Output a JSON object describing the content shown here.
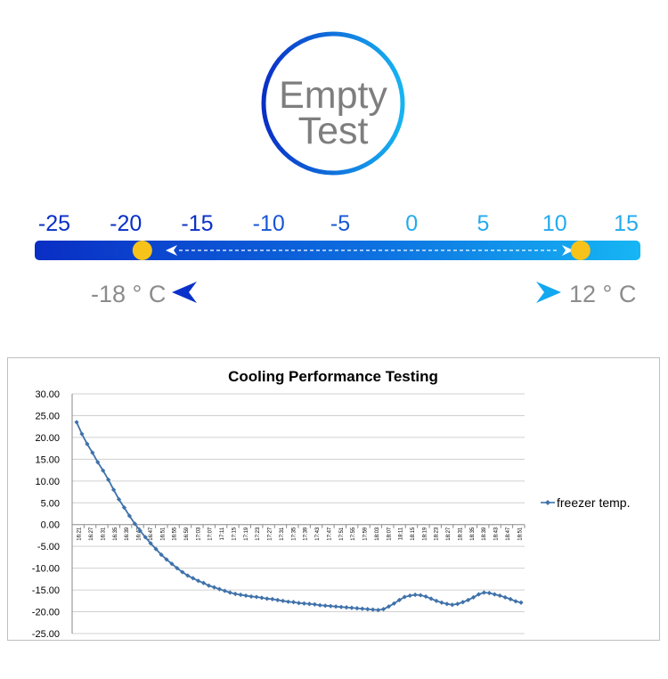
{
  "badge": {
    "line1": "Empty",
    "line2": "Test"
  },
  "scale": {
    "ticks": [
      "-25",
      "-20",
      "-15",
      "-10",
      "-5",
      "0",
      "5",
      "10",
      "15"
    ],
    "min_value": -25,
    "max_value": 15,
    "left_marker_value": -18,
    "right_marker_value": 12
  },
  "readouts": {
    "left_label": "-18 ° C",
    "right_label": "12 ° C"
  },
  "colors": {
    "dark_blue": "#0a31c9",
    "light_blue": "#13b0f2",
    "marker_yellow": "#f7c31a",
    "series_blue": "#3f72aa",
    "text_gray": "#8c8c8c"
  },
  "chart_data": {
    "type": "line",
    "title": "Cooling Performance Testing",
    "xlabel": "",
    "ylabel": "",
    "ylim": [
      -25,
      30
    ],
    "yticks": [
      "30.00",
      "25.00",
      "20.00",
      "15.00",
      "10.00",
      "5.00",
      "0.00",
      "-5.00",
      "-10.00",
      "-15.00",
      "-20.00",
      "-25.00"
    ],
    "x_tick_labels": [
      "16:21",
      "16:27",
      "16:31",
      "16:35",
      "16:39",
      "16:43",
      "16:47",
      "16:51",
      "16:55",
      "16:59",
      "17:03",
      "17:07",
      "17:11",
      "17:15",
      "17:19",
      "17:23",
      "17:27",
      "17:31",
      "17:35",
      "17:39",
      "17:43",
      "17:47",
      "17:51",
      "17:55",
      "17:59",
      "18:03",
      "18:07",
      "18:11",
      "18:15",
      "18:19",
      "18:23",
      "18:27",
      "18:31",
      "18:35",
      "18:39",
      "18:43",
      "18:47",
      "18:51"
    ],
    "grid": true,
    "legend_position": "right",
    "series": [
      {
        "name": "freezer temp.",
        "values": [
          23.5,
          20.8,
          18.5,
          16.5,
          14.3,
          12.4,
          10.3,
          8.0,
          5.8,
          3.9,
          2.0,
          0.2,
          -1.4,
          -2.9,
          -4.3,
          -5.6,
          -6.9,
          -8.0,
          -9.0,
          -10.0,
          -10.9,
          -11.7,
          -12.3,
          -12.9,
          -13.4,
          -14.0,
          -14.4,
          -14.8,
          -15.2,
          -15.6,
          -15.9,
          -16.1,
          -16.3,
          -16.5,
          -16.6,
          -16.8,
          -17.0,
          -17.1,
          -17.3,
          -17.5,
          -17.7,
          -17.8,
          -18.0,
          -18.1,
          -18.2,
          -18.3,
          -18.5,
          -18.6,
          -18.7,
          -18.8,
          -18.9,
          -19.0,
          -19.1,
          -19.2,
          -19.3,
          -19.4,
          -19.5,
          -19.6,
          -19.4,
          -18.8,
          -18.1,
          -17.3,
          -16.6,
          -16.3,
          -16.1,
          -16.2,
          -16.5,
          -17.0,
          -17.5,
          -17.9,
          -18.2,
          -18.4,
          -18.2,
          -17.8,
          -17.3,
          -16.7,
          -16.0,
          -15.6,
          -15.7,
          -16.0,
          -16.3,
          -16.7,
          -17.1,
          -17.6,
          -17.9
        ]
      }
    ]
  }
}
